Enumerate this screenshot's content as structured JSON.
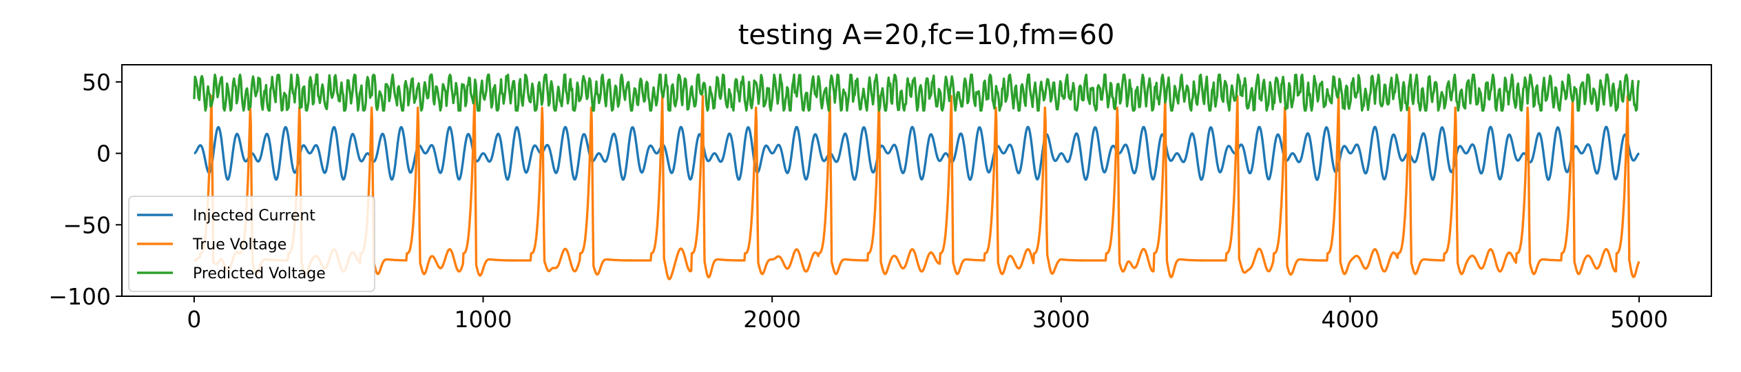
{
  "chart_data": {
    "type": "line",
    "title": "testing A=20,fc=10,fm=60",
    "xlabel": "",
    "ylabel": "",
    "xlim": [
      -250,
      5250
    ],
    "ylim": [
      -100,
      62
    ],
    "xticks": [
      0,
      1000,
      2000,
      3000,
      4000,
      5000
    ],
    "xtick_labels": [
      "0",
      "1000",
      "2000",
      "3000",
      "4000",
      "5000"
    ],
    "yticks": [
      -100,
      -50,
      0,
      50
    ],
    "ytick_labels": [
      "−100",
      "−50",
      "0",
      "50"
    ],
    "grid": false,
    "legend_position": "lower-left",
    "series": [
      {
        "name": "Injected Current",
        "color": "#1f77b4",
        "description": "amplitude-modulated oscillation, A=20, carrier 10, modulation 60, period ~400 samples",
        "amplitude": 20,
        "fc": 10,
        "fm": 60,
        "x_range": [
          0,
          5000
        ]
      },
      {
        "name": "True Voltage",
        "color": "#ff7f0e",
        "spike_times": [
          60,
          195,
          365,
          615,
          775,
          970,
          1205,
          1375,
          1620,
          1760,
          1945,
          2200,
          2370,
          2620,
          2775,
          2945,
          3195,
          3360,
          3610,
          3775,
          3960,
          4205,
          4365,
          4615,
          4770,
          4960
        ],
        "spike_peak": 40,
        "rest_min": -95,
        "x_range": [
          0,
          5000
        ]
      },
      {
        "name": "Predicted Voltage",
        "color": "#2ca02c",
        "center": 42,
        "range": [
          30,
          55
        ],
        "x_range": [
          0,
          5000
        ]
      }
    ]
  }
}
